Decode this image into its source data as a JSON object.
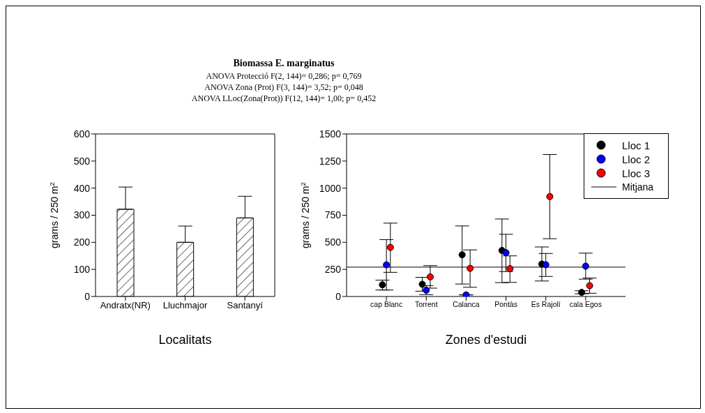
{
  "chart_data": [
    {
      "type": "bar",
      "title": "Biomassa E. marginatus",
      "annotations": [
        "ANOVA Protecció F(2, 144)= 0,286; p= 0,769",
        "ANOVA Zona (Prot) F(3, 144)= 3,52; p= 0,048",
        "ANOVA LLoc(Zona(Prot)) F(12, 144)= 1,00; p= 0,452"
      ],
      "categories": [
        "Andratx(NR)",
        "Lluchmajor",
        "Santanyí"
      ],
      "values": [
        322,
        200,
        290
      ],
      "errors": [
        [
          322,
          404
        ],
        [
          200,
          260
        ],
        [
          290,
          370
        ]
      ],
      "color": "#000000",
      "xlabel": "Localitats",
      "ylabel": "grams / 250 m$^{2}$",
      "ylim": [
        0,
        600
      ],
      "yticks": [
        0,
        100,
        200,
        300,
        400,
        500,
        600
      ],
      "grid": false
    },
    {
      "type": "scatter",
      "marker": "circle",
      "categories": [
        "cap Blanc",
        "Torrent",
        "Calanca",
        "Pontàs",
        "Es Rajolí",
        "cala Egos"
      ],
      "series": [
        {
          "name": "Lloc 1",
          "color": "#000000",
          "values": [
            108,
            113,
            385,
            425,
            299,
            38
          ],
          "errors": [
            [
              60,
              151
            ],
            [
              49,
              177
            ],
            [
              115,
              651
            ],
            [
              128,
              715
            ],
            [
              143,
              457
            ],
            [
              25,
              53
            ]
          ]
        },
        {
          "name": "Lloc 2",
          "color": "#0000ff",
          "values": [
            292,
            58,
            15,
            404,
            293,
            280
          ],
          "errors": [
            [
              60,
              525
            ],
            [
              17,
              100
            ],
            null,
            [
              230,
              574
            ],
            [
              185,
              397
            ],
            [
              160,
              400
            ]
          ]
        },
        {
          "name": "Lloc 3",
          "color": "#ff0000",
          "values": [
            453,
            181,
            260,
            257,
            922,
            100
          ],
          "errors": [
            [
              223,
              677
            ],
            [
              77,
              285
            ],
            [
              85,
              430
            ],
            [
              130,
              375
            ],
            [
              533,
              1310
            ],
            [
              30,
              170
            ]
          ]
        }
      ],
      "ref_lines": [
        {
          "axis": "y",
          "value": 271,
          "label": "Mitjana",
          "color": "#000000"
        }
      ],
      "xlabel": "Zones d'estudi",
      "ylabel": "grams / 250 m$^{2}$",
      "ylim": [
        0,
        1500
      ],
      "yticks": [
        0,
        250,
        500,
        750,
        1000,
        1250,
        1500
      ],
      "grid": false,
      "legend": "top right"
    }
  ]
}
